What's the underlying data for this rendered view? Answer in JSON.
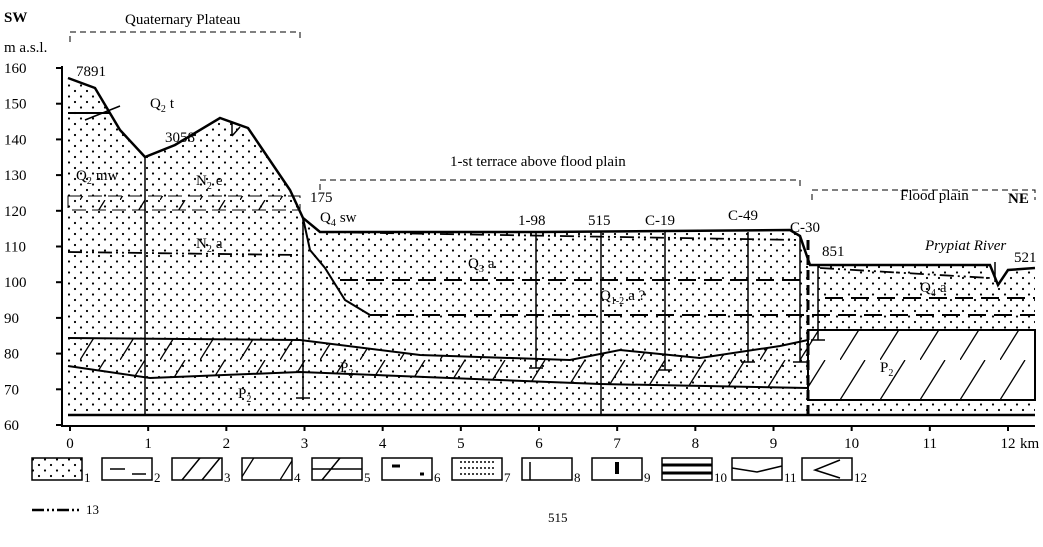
{
  "header": {
    "left": "SW",
    "right": "NE",
    "units": "m a.s.l."
  },
  "zones": [
    {
      "label": "Quaternary Plateau"
    },
    {
      "label": "1-st terrace above flood plain"
    },
    {
      "label": "Flood plain"
    }
  ],
  "y_axis": {
    "ticks": [
      160,
      150,
      140,
      130,
      120,
      110,
      100,
      90,
      80,
      70,
      60
    ]
  },
  "x_axis": {
    "ticks": [
      0,
      1,
      2,
      3,
      4,
      5,
      6,
      7,
      8,
      9,
      10,
      11,
      12
    ],
    "unit": "km"
  },
  "wells": [
    {
      "label": "7891"
    },
    {
      "label": "3058"
    },
    {
      "label": "175"
    },
    {
      "label": "1-98"
    },
    {
      "label": "515"
    },
    {
      "label": "C-19"
    },
    {
      "label": "C-49"
    },
    {
      "label": "C-30"
    },
    {
      "label": "851"
    },
    {
      "label": "521"
    }
  ],
  "units": [
    {
      "symbol": "Q",
      "index": "2",
      "facies": "t"
    },
    {
      "symbol": "Q",
      "index": "2",
      "facies": "mw"
    },
    {
      "symbol": "N",
      "index": "2",
      "facies": "e"
    },
    {
      "symbol": "N",
      "index": "2",
      "facies": "a"
    },
    {
      "symbol": "Q",
      "index": "4",
      "facies": "sw"
    },
    {
      "symbol": "Q",
      "index": "3",
      "facies": "a"
    },
    {
      "symbol": "Q",
      "index": "1-2",
      "facies": "a ?"
    },
    {
      "symbol": "P",
      "index": "2",
      "facies": ""
    },
    {
      "symbol": "P",
      "index": "2",
      "facies": ""
    },
    {
      "symbol": "P",
      "index": "2",
      "facies": ""
    },
    {
      "symbol": "Q",
      "index": "4",
      "facies": "a"
    }
  ],
  "river": "Prypiat River",
  "legend": [
    "1",
    "2",
    "3",
    "4",
    "5",
    "6",
    "7",
    "8",
    "9",
    "10",
    "11",
    "12",
    "13"
  ],
  "legend_well": "515"
}
